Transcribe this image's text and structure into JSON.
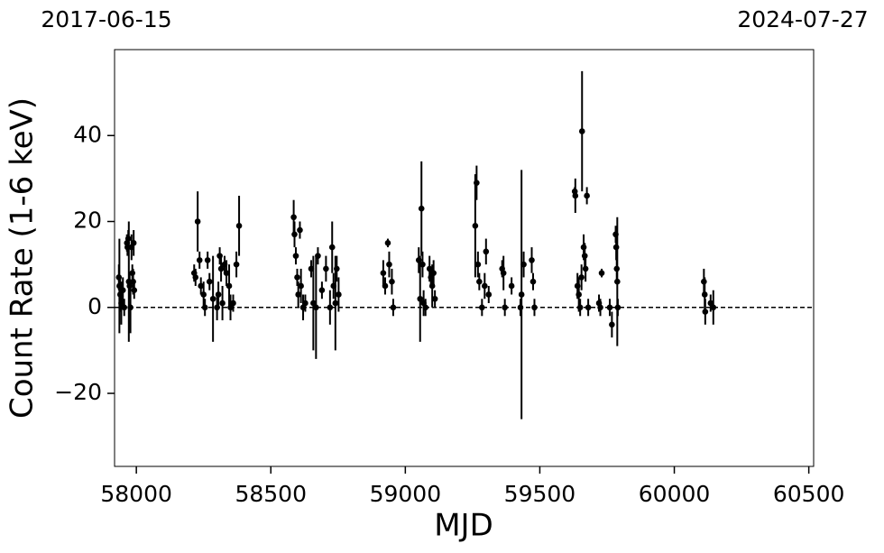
{
  "chart_data": {
    "type": "errorbar",
    "top_labels": [
      "2017-06-15",
      "2024-07-27"
    ],
    "xlabel": "MJD",
    "ylabel": "Count Rate (1-6 keV)",
    "xlim": [
      57919,
      60518
    ],
    "ylim": [
      -37,
      60
    ],
    "xticks": [
      58000,
      58500,
      59000,
      59500,
      60000,
      60500
    ],
    "yticks": [
      {
        "value": -20,
        "label": "−20"
      },
      0,
      20,
      40
    ],
    "hline": 0,
    "series": [
      {
        "color": "#000000",
        "x": [
          57935,
          57937,
          57940,
          57944,
          57950,
          57955,
          57965,
          57967,
          57970,
          57972,
          57975,
          57978,
          57982,
          57985,
          57988,
          57990,
          57992,
          58215,
          58220,
          58228,
          58235,
          58240,
          58250,
          58255,
          58265,
          58272,
          58285,
          58300,
          58305,
          58310,
          58315,
          58320,
          58328,
          58335,
          58345,
          58350,
          58360,
          58372,
          58382,
          58585,
          58588,
          58593,
          58598,
          58602,
          58608,
          58612,
          58620,
          58628,
          58650,
          58658,
          58668,
          58675,
          58690,
          58705,
          58720,
          58728,
          58733,
          58740,
          58745,
          58752,
          58918,
          58925,
          58935,
          58940,
          58950,
          58955,
          59050,
          59055,
          59060,
          59064,
          59068,
          59075,
          59090,
          59095,
          59100,
          59105,
          59110,
          59260,
          59265,
          59270,
          59275,
          59285,
          59295,
          59300,
          59310,
          59360,
          59365,
          59370,
          59395,
          59428,
          59432,
          59440,
          59470,
          59475,
          59480,
          59630,
          59632,
          59640,
          59645,
          59650,
          59655,
          59657,
          59663,
          59667,
          59670,
          59675,
          59680,
          59720,
          59725,
          59730,
          59760,
          59768,
          59782,
          59784,
          59786,
          59788,
          59790,
          60110,
          60113,
          60115,
          60135,
          60145
        ],
        "values": [
          7,
          5,
          3,
          1,
          4,
          0,
          15,
          14,
          16,
          6,
          5,
          0,
          14,
          8,
          6,
          15,
          4,
          8,
          7,
          20,
          11,
          5,
          3,
          0,
          11,
          6,
          2,
          0,
          3,
          12,
          9,
          1,
          10,
          8,
          5,
          0,
          1,
          10,
          19,
          21,
          17,
          12,
          7,
          3,
          18,
          5,
          0,
          1,
          9,
          1,
          0,
          12,
          4,
          9,
          0,
          14,
          5,
          1,
          9,
          3,
          8,
          5,
          15,
          10,
          6,
          0,
          11,
          2,
          23,
          10,
          1,
          0,
          9,
          7,
          5,
          8,
          2,
          19,
          29,
          10,
          6,
          0,
          5,
          13,
          3,
          9,
          8,
          0,
          5,
          0,
          3,
          10,
          11,
          6,
          0,
          27,
          26,
          5,
          3,
          0,
          7,
          41,
          14,
          12,
          9,
          26,
          0,
          1,
          0,
          8,
          0,
          -4,
          17,
          14,
          9,
          6,
          0,
          6,
          3,
          -1,
          1,
          0
        ],
        "yerr": [
          3,
          11,
          4,
          5,
          3,
          2,
          2,
          2,
          2,
          14,
          3,
          6,
          3,
          2,
          3,
          3,
          2,
          2,
          2,
          7,
          2,
          2,
          3,
          2,
          2,
          2,
          10,
          3,
          3,
          2,
          3,
          4,
          2,
          3,
          5,
          3,
          2,
          3,
          7,
          4,
          3,
          2,
          2,
          3,
          2,
          4,
          3,
          2,
          2,
          11,
          12,
          2,
          2,
          3,
          4,
          6,
          3,
          11,
          3,
          4,
          3,
          2,
          1,
          3,
          3,
          2,
          3,
          10,
          11,
          3,
          3,
          2,
          3,
          2,
          5,
          3,
          2,
          12,
          4,
          3,
          2,
          2,
          3,
          3,
          2,
          2,
          4,
          2,
          2,
          2,
          29,
          3,
          3,
          2,
          2,
          1,
          4,
          3,
          4,
          2,
          3,
          14,
          3,
          3,
          3,
          2,
          2,
          2,
          2,
          1,
          2,
          3,
          2,
          3,
          3,
          15,
          2,
          3,
          4,
          3,
          2,
          4
        ]
      }
    ]
  }
}
